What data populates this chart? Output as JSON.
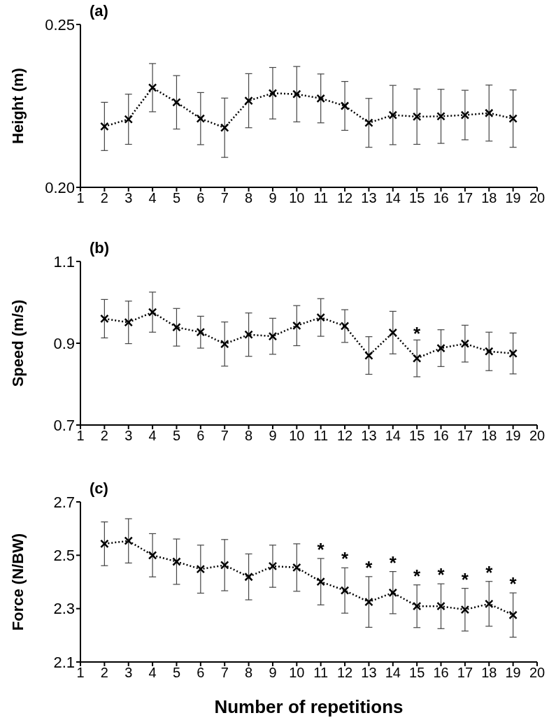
{
  "chart_data": [
    {
      "type": "line",
      "title": "(a)",
      "ylabel": "Height (m)",
      "x": [
        2,
        3,
        4,
        5,
        6,
        7,
        8,
        9,
        10,
        11,
        12,
        13,
        14,
        15,
        16,
        17,
        18,
        19
      ],
      "series": [
        {
          "color": "#000000",
          "values": [
            0.2187,
            0.2209,
            0.2306,
            0.2261,
            0.2211,
            0.2183,
            0.2266,
            0.2289,
            0.2286,
            0.2273,
            0.225,
            0.2198,
            0.2222,
            0.2217,
            0.2218,
            0.2222,
            0.2228,
            0.2211
          ],
          "errors": [
            0.0074,
            0.0077,
            0.0074,
            0.0082,
            0.008,
            0.0091,
            0.0083,
            0.0079,
            0.0085,
            0.0075,
            0.0075,
            0.0075,
            0.0091,
            0.0085,
            0.0083,
            0.0076,
            0.0086,
            0.0088
          ]
        }
      ],
      "xlim": [
        1,
        20
      ],
      "xticks": [
        1,
        2,
        3,
        4,
        5,
        6,
        7,
        8,
        9,
        10,
        11,
        12,
        13,
        14,
        15,
        16,
        17,
        18,
        19,
        20
      ],
      "ylim": [
        0.2,
        0.25
      ],
      "yticks": [
        {
          "value": 0.2,
          "label": "0.20"
        },
        {
          "value": 0.25,
          "label": "0.25"
        }
      ],
      "marker": "cross",
      "line_style": "dotted",
      "grid": false,
      "legend": false
    },
    {
      "type": "line",
      "title": "(b)",
      "ylabel": "Speed (m/s)",
      "x": [
        2,
        3,
        4,
        5,
        6,
        7,
        8,
        9,
        10,
        11,
        12,
        13,
        14,
        15,
        16,
        17,
        18,
        19
      ],
      "series": [
        {
          "color": "#000000",
          "values": [
            0.96,
            0.951,
            0.976,
            0.939,
            0.927,
            0.898,
            0.921,
            0.917,
            0.943,
            0.963,
            0.942,
            0.87,
            0.926,
            0.863,
            0.888,
            0.899,
            0.88,
            0.875
          ],
          "errors": [
            0.047,
            0.052,
            0.049,
            0.046,
            0.039,
            0.054,
            0.053,
            0.044,
            0.049,
            0.046,
            0.04,
            0.046,
            0.052,
            0.045,
            0.045,
            0.045,
            0.047,
            0.05
          ]
        }
      ],
      "xlim": [
        1,
        20
      ],
      "xticks": [
        1,
        2,
        3,
        4,
        5,
        6,
        7,
        8,
        9,
        10,
        11,
        12,
        13,
        14,
        15,
        16,
        17,
        18,
        19,
        20
      ],
      "ylim": [
        0.7,
        1.1
      ],
      "yticks": [
        0.7,
        0.9,
        1.1
      ],
      "annotations": [
        {
          "text": "*",
          "x": 15,
          "y": 0.908
        }
      ],
      "marker": "cross",
      "line_style": "dotted",
      "grid": false,
      "legend": false
    },
    {
      "type": "line",
      "title": "(c)",
      "ylabel": "Force (N/BW)",
      "xlabel": "Number of repetitions",
      "x": [
        2,
        3,
        4,
        5,
        6,
        7,
        8,
        9,
        10,
        11,
        12,
        13,
        14,
        15,
        16,
        17,
        18,
        19
      ],
      "series": [
        {
          "color": "#000000",
          "values": [
            2.543,
            2.554,
            2.5,
            2.476,
            2.448,
            2.463,
            2.419,
            2.459,
            2.454,
            2.401,
            2.368,
            2.325,
            2.36,
            2.309,
            2.309,
            2.296,
            2.318,
            2.276
          ],
          "errors": [
            0.082,
            0.083,
            0.081,
            0.085,
            0.09,
            0.096,
            0.086,
            0.079,
            0.089,
            0.087,
            0.085,
            0.095,
            0.079,
            0.08,
            0.084,
            0.08,
            0.084,
            0.083
          ]
        }
      ],
      "xlim": [
        1,
        20
      ],
      "xticks": [
        1,
        2,
        3,
        4,
        5,
        6,
        7,
        8,
        9,
        10,
        11,
        12,
        13,
        14,
        15,
        16,
        17,
        18,
        19,
        20
      ],
      "ylim": [
        2.1,
        2.7
      ],
      "yticks": [
        2.1,
        2.3,
        2.5,
        2.7
      ],
      "annotations": [
        {
          "text": "*",
          "x": 11,
          "y": 2.488
        },
        {
          "text": "*",
          "x": 12,
          "y": 2.453
        },
        {
          "text": "*",
          "x": 13,
          "y": 2.42
        },
        {
          "text": "*",
          "x": 14,
          "y": 2.439
        },
        {
          "text": "*",
          "x": 15,
          "y": 2.389
        },
        {
          "text": "*",
          "x": 16,
          "y": 2.393
        },
        {
          "text": "*",
          "x": 17,
          "y": 2.376
        },
        {
          "text": "*",
          "x": 18,
          "y": 2.402
        },
        {
          "text": "*",
          "x": 19,
          "y": 2.359
        }
      ],
      "marker": "cross",
      "line_style": "dotted",
      "grid": false,
      "legend": false
    }
  ]
}
